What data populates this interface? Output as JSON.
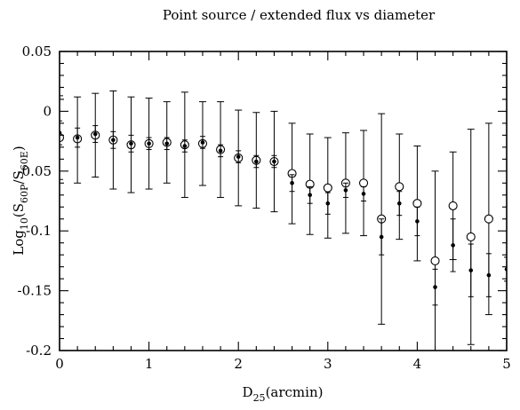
{
  "chart_data": {
    "type": "scatter",
    "title": "Point source / extended flux vs diameter",
    "xlabel": {
      "base": "D",
      "sub": "25",
      "rest": "(arcmin)"
    },
    "ylabel": {
      "pre": "Log",
      "sub1": "10",
      "mid1": "(S",
      "sub2": "60P",
      "mid2": "/S",
      "sub3": "60E",
      "post": ")"
    },
    "xlim": [
      0,
      5
    ],
    "ylim": [
      -0.2,
      0.05
    ],
    "x_ticks": [
      0,
      1,
      2,
      3,
      4,
      5
    ],
    "x_tick_labels": [
      "0",
      "1",
      "2",
      "3",
      "4",
      "5"
    ],
    "y_ticks": [
      0.05,
      0,
      -0.05,
      -0.1,
      -0.15,
      -0.2
    ],
    "y_tick_labels": [
      "0.05",
      "0",
      "-0.05",
      "-0.1",
      "-0.15",
      "-0.2"
    ],
    "grid": false,
    "legend": "none",
    "series": [
      {
        "marker": "open-circle",
        "points": [
          {
            "x": 0.0,
            "y": -0.022,
            "lo": -0.057,
            "hi": 0.013
          },
          {
            "x": 0.2,
            "y": -0.023,
            "lo": -0.06,
            "hi": 0.012
          },
          {
            "x": 0.4,
            "y": -0.02,
            "lo": -0.055,
            "hi": 0.015
          },
          {
            "x": 0.6,
            "y": -0.024,
            "lo": -0.065,
            "hi": 0.017
          },
          {
            "x": 0.8,
            "y": -0.028,
            "lo": -0.068,
            "hi": 0.012
          },
          {
            "x": 1.0,
            "y": -0.027,
            "lo": -0.065,
            "hi": 0.011
          },
          {
            "x": 1.2,
            "y": -0.026,
            "lo": -0.06,
            "hi": 0.008
          },
          {
            "x": 1.4,
            "y": -0.028,
            "lo": -0.072,
            "hi": 0.016
          },
          {
            "x": 1.6,
            "y": -0.027,
            "lo": -0.062,
            "hi": 0.008
          },
          {
            "x": 1.8,
            "y": -0.032,
            "lo": -0.072,
            "hi": 0.008
          },
          {
            "x": 2.0,
            "y": -0.039,
            "lo": -0.079,
            "hi": 0.001
          },
          {
            "x": 2.2,
            "y": -0.041,
            "lo": -0.081,
            "hi": -0.001
          },
          {
            "x": 2.4,
            "y": -0.042,
            "lo": -0.084,
            "hi": 0.0
          },
          {
            "x": 2.6,
            "y": -0.052,
            "lo": -0.094,
            "hi": -0.01
          },
          {
            "x": 2.8,
            "y": -0.061,
            "lo": -0.103,
            "hi": -0.019
          },
          {
            "x": 3.0,
            "y": -0.064,
            "lo": -0.106,
            "hi": -0.022
          },
          {
            "x": 3.2,
            "y": -0.06,
            "lo": -0.102,
            "hi": -0.018
          },
          {
            "x": 3.4,
            "y": -0.06,
            "lo": -0.104,
            "hi": -0.016
          },
          {
            "x": 3.6,
            "y": -0.09,
            "lo": -0.178,
            "hi": -0.002
          },
          {
            "x": 3.8,
            "y": -0.063,
            "lo": -0.107,
            "hi": -0.019
          },
          {
            "x": 4.0,
            "y": -0.077,
            "lo": -0.125,
            "hi": -0.029
          },
          {
            "x": 4.2,
            "y": -0.125,
            "lo": -0.2,
            "hi": -0.05
          },
          {
            "x": 4.4,
            "y": -0.079,
            "lo": -0.124,
            "hi": -0.034
          },
          {
            "x": 4.6,
            "y": -0.105,
            "lo": -0.195,
            "hi": -0.015
          },
          {
            "x": 4.8,
            "y": -0.09,
            "lo": -0.17,
            "hi": -0.01
          }
        ]
      },
      {
        "marker": "filled-dot",
        "points": [
          {
            "x": 0.0,
            "y": -0.018,
            "lo": -0.028,
            "hi": -0.008
          },
          {
            "x": 0.2,
            "y": -0.022,
            "lo": -0.03,
            "hi": -0.014
          },
          {
            "x": 0.4,
            "y": -0.019,
            "lo": -0.026,
            "hi": -0.012
          },
          {
            "x": 0.6,
            "y": -0.024,
            "lo": -0.031,
            "hi": -0.017
          },
          {
            "x": 0.8,
            "y": -0.027,
            "lo": -0.034,
            "hi": -0.02
          },
          {
            "x": 1.0,
            "y": -0.027,
            "lo": -0.032,
            "hi": -0.022
          },
          {
            "x": 1.2,
            "y": -0.027,
            "lo": -0.032,
            "hi": -0.022
          },
          {
            "x": 1.4,
            "y": -0.029,
            "lo": -0.034,
            "hi": -0.024
          },
          {
            "x": 1.6,
            "y": -0.026,
            "lo": -0.031,
            "hi": -0.021
          },
          {
            "x": 1.8,
            "y": -0.033,
            "lo": -0.038,
            "hi": -0.028
          },
          {
            "x": 2.0,
            "y": -0.038,
            "lo": -0.043,
            "hi": -0.033
          },
          {
            "x": 2.2,
            "y": -0.042,
            "lo": -0.047,
            "hi": -0.037
          },
          {
            "x": 2.4,
            "y": -0.042,
            "lo": -0.047,
            "hi": -0.037
          },
          {
            "x": 2.6,
            "y": -0.06,
            "lo": -0.067,
            "hi": -0.053
          },
          {
            "x": 2.8,
            "y": -0.07,
            "lo": -0.077,
            "hi": -0.063
          },
          {
            "x": 3.0,
            "y": -0.077,
            "lo": -0.086,
            "hi": -0.068
          },
          {
            "x": 3.2,
            "y": -0.066,
            "lo": -0.072,
            "hi": -0.06
          },
          {
            "x": 3.4,
            "y": -0.069,
            "lo": -0.075,
            "hi": -0.063
          },
          {
            "x": 3.6,
            "y": -0.105,
            "lo": -0.12,
            "hi": -0.09
          },
          {
            "x": 3.8,
            "y": -0.077,
            "lo": -0.087,
            "hi": -0.067
          },
          {
            "x": 4.0,
            "y": -0.092,
            "lo": -0.104,
            "hi": -0.08
          },
          {
            "x": 4.2,
            "y": -0.147,
            "lo": -0.162,
            "hi": -0.132
          },
          {
            "x": 4.4,
            "y": -0.112,
            "lo": -0.134,
            "hi": -0.09
          },
          {
            "x": 4.6,
            "y": -0.133,
            "lo": -0.155,
            "hi": -0.111
          },
          {
            "x": 4.8,
            "y": -0.137,
            "lo": -0.155,
            "hi": -0.119
          },
          {
            "x": 5.0,
            "y": -0.132,
            "lo": -0.142,
            "hi": -0.122
          }
        ]
      }
    ]
  }
}
